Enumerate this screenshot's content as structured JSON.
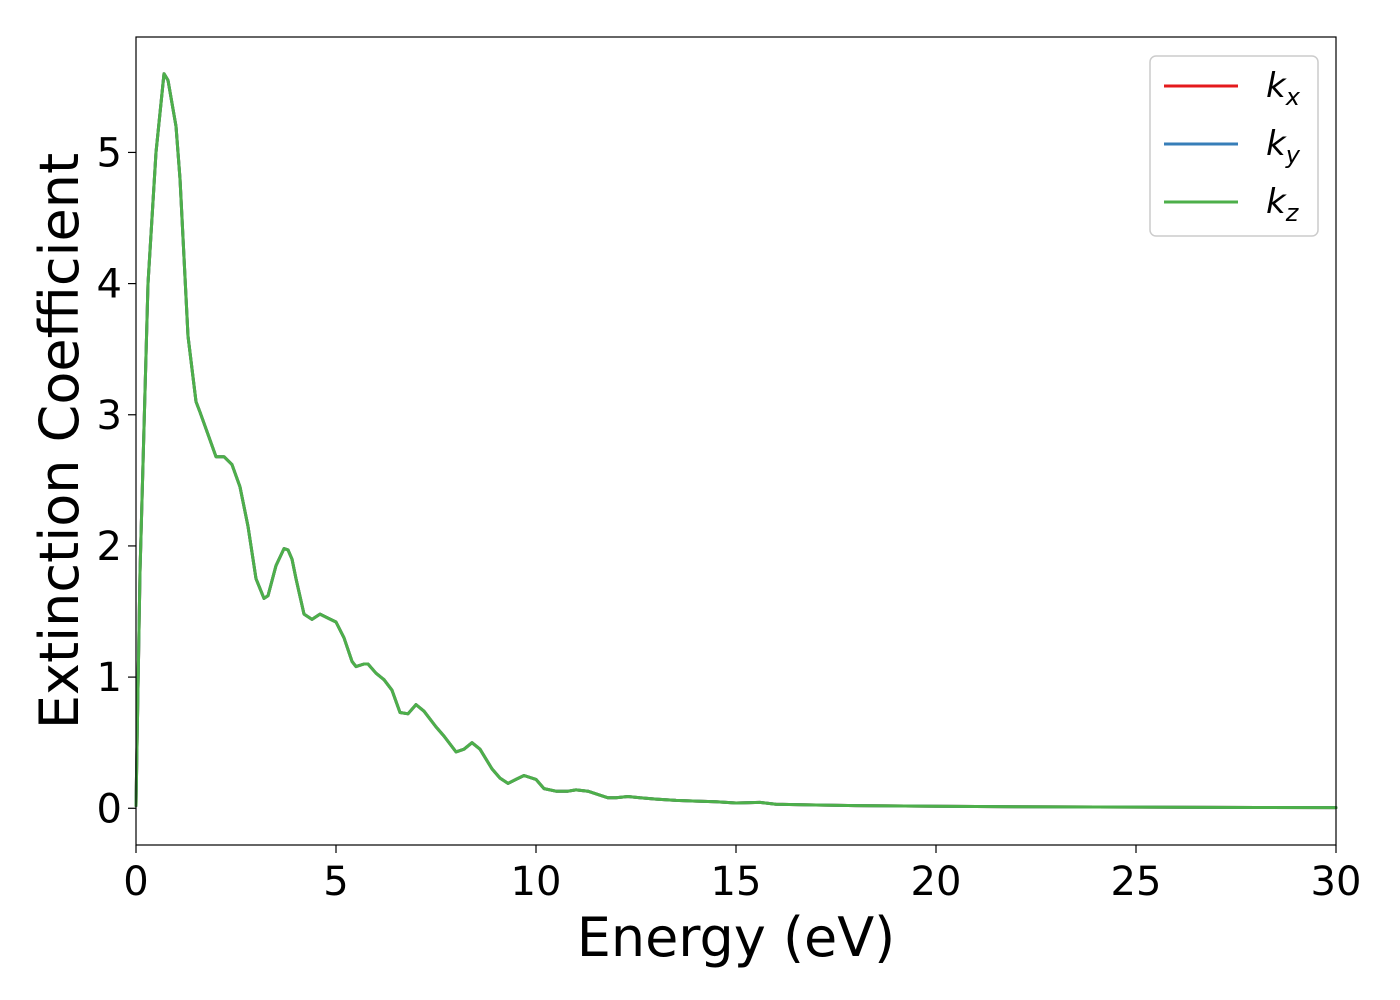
{
  "chart_data": {
    "type": "line",
    "title": "",
    "xlabel": "Energy (eV)",
    "ylabel": "Extinction Coefficient",
    "xlim": [
      0,
      30
    ],
    "ylim": [
      -0.28,
      5.88
    ],
    "xticks": [
      0,
      5,
      10,
      15,
      20,
      25,
      30
    ],
    "yticks": [
      0,
      1,
      2,
      3,
      4,
      5
    ],
    "grid": false,
    "legend_position": "top-right",
    "series": [
      {
        "name": "k",
        "subscript": "x",
        "color": "#e41a1c",
        "ref": "kz"
      },
      {
        "name": "k",
        "subscript": "y",
        "color": "#377eb8",
        "ref": "kz"
      },
      {
        "name": "k",
        "subscript": "z",
        "color": "#4daf4a",
        "ref": "kz"
      }
    ],
    "kz": {
      "x": [
        0,
        0.1,
        0.3,
        0.5,
        0.7,
        0.8,
        1.0,
        1.1,
        1.2,
        1.3,
        1.5,
        1.6,
        1.8,
        2.0,
        2.2,
        2.4,
        2.6,
        2.8,
        3.0,
        3.2,
        3.3,
        3.5,
        3.7,
        3.8,
        3.9,
        4.0,
        4.2,
        4.4,
        4.6,
        4.8,
        5.0,
        5.2,
        5.4,
        5.5,
        5.7,
        5.8,
        6.0,
        6.2,
        6.4,
        6.6,
        6.8,
        7.0,
        7.2,
        7.5,
        7.7,
        8.0,
        8.2,
        8.4,
        8.6,
        8.9,
        9.1,
        9.3,
        9.5,
        9.7,
        10.0,
        10.2,
        10.5,
        10.8,
        11.0,
        11.3,
        11.6,
        11.8,
        12.0,
        12.3,
        12.6,
        13.0,
        13.5,
        14.0,
        14.5,
        15.0,
        15.6,
        16.0,
        17.0,
        18.0,
        20.0,
        22.0,
        24.0,
        26.0,
        28.0,
        30.0
      ],
      "y": [
        0.02,
        1.8,
        4.0,
        5.0,
        5.6,
        5.55,
        5.2,
        4.8,
        4.2,
        3.6,
        3.1,
        3.02,
        2.85,
        2.68,
        2.68,
        2.62,
        2.45,
        2.15,
        1.75,
        1.6,
        1.62,
        1.85,
        1.98,
        1.97,
        1.9,
        1.75,
        1.48,
        1.44,
        1.48,
        1.45,
        1.42,
        1.3,
        1.12,
        1.08,
        1.1,
        1.1,
        1.03,
        0.98,
        0.9,
        0.73,
        0.72,
        0.79,
        0.74,
        0.62,
        0.55,
        0.43,
        0.45,
        0.5,
        0.45,
        0.3,
        0.23,
        0.19,
        0.22,
        0.25,
        0.22,
        0.15,
        0.13,
        0.13,
        0.14,
        0.13,
        0.1,
        0.08,
        0.08,
        0.09,
        0.08,
        0.07,
        0.06,
        0.055,
        0.05,
        0.04,
        0.045,
        0.03,
        0.025,
        0.02,
        0.015,
        0.012,
        0.01,
        0.008,
        0.006,
        0.005
      ]
    }
  }
}
